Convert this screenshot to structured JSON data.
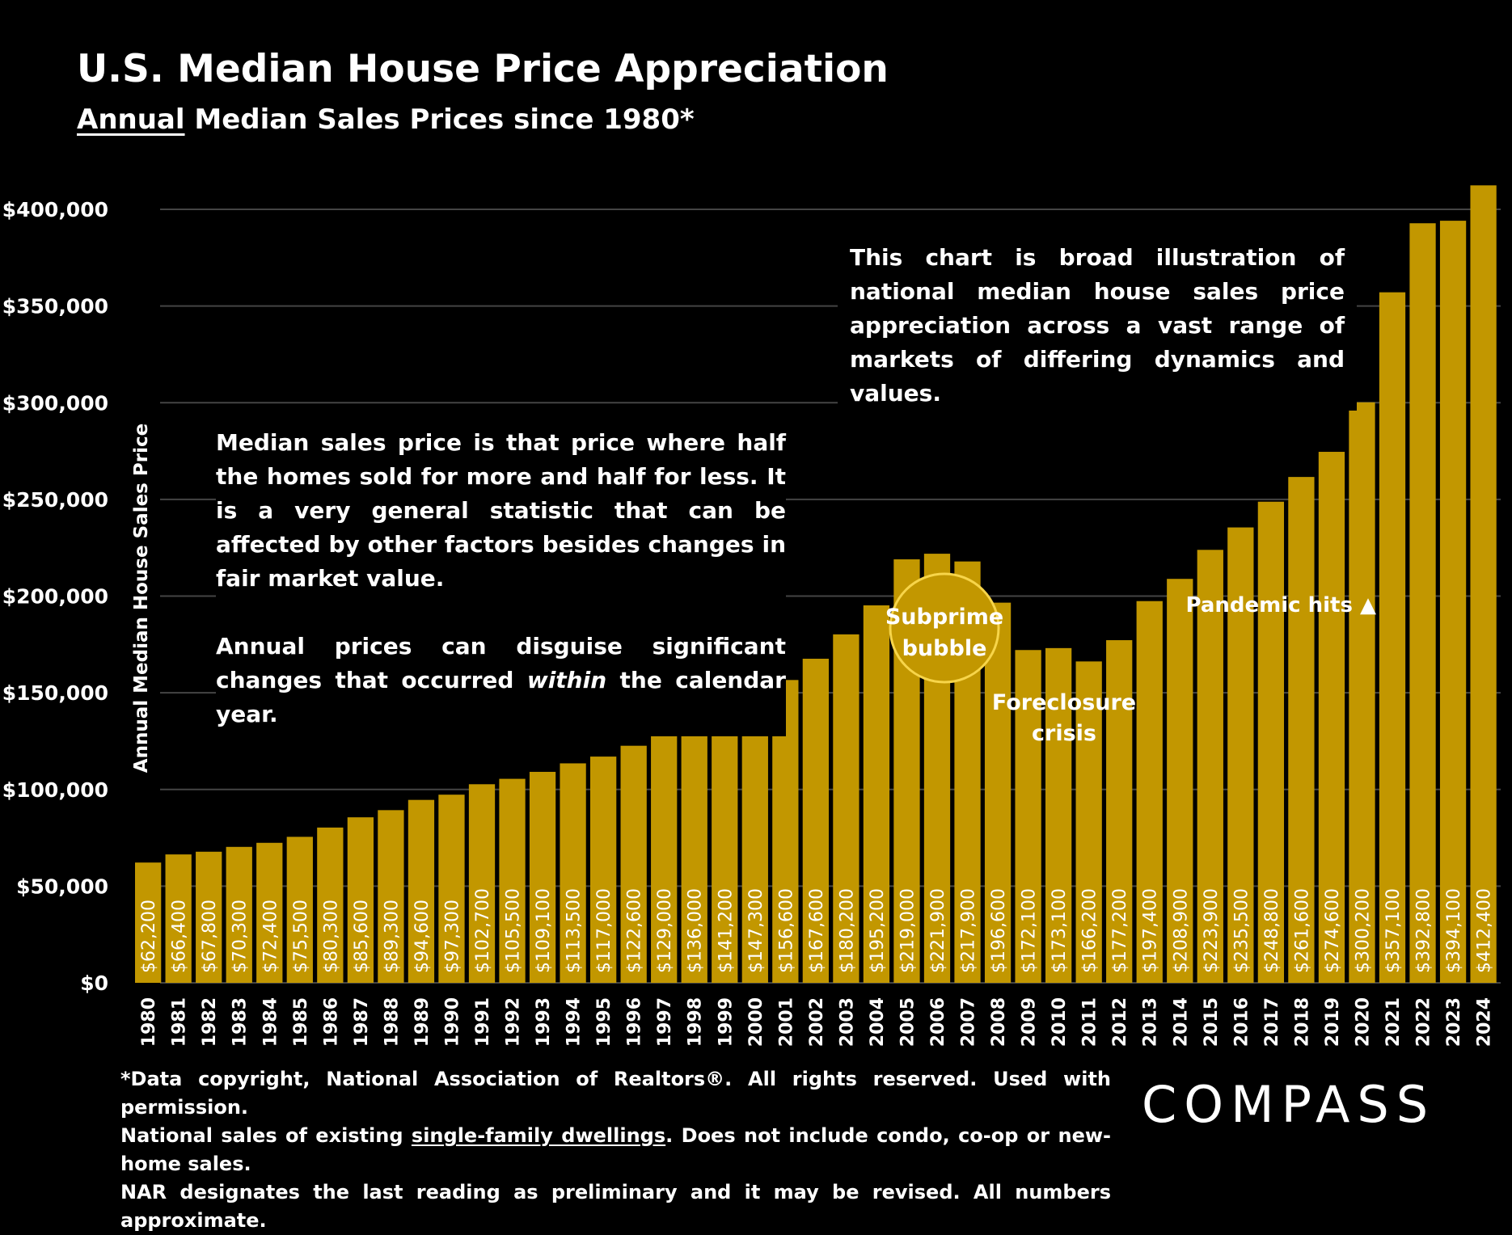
{
  "title": "U.S. Median House Price Appreciation",
  "subtitle_underlined": "Annual",
  "subtitle_rest": " Median Sales Prices since 1980*",
  "notes": {
    "left_p1": "Median sales price is that price where half the homes sold for more and half for less. It is a very general statistic that can be affected by other factors besides changes in fair market value.",
    "left_p2_a": "Annual prices can disguise significant changes that occurred ",
    "left_p2_em": "within",
    "left_p2_b": " the calendar year.",
    "right": "This chart is broad illustration of national median house sales price appreciation across a vast range of markets of differing dynamics and values."
  },
  "footer": {
    "line1": "*Data copyright, National Association of Realtors®. All rights reserved. Used with permission.",
    "line2_a": "National sales of existing ",
    "line2_u": "single-family dwellings",
    "line2_b": ". Does not include condo, co-op or new-home sales.",
    "line3": "NAR designates the last reading as preliminary and it may be revised. All numbers approximate."
  },
  "logo": "COMPASS",
  "colors": {
    "bar": "#c29700",
    "background": "#000000",
    "circle_border": "#f7d54a",
    "grid": "#444444"
  },
  "chart_data": {
    "type": "bar",
    "ylabel": "Annual Median House Sales Price",
    "ylim": [
      0,
      400000
    ],
    "yticks": [
      "$0",
      "$50,000",
      "$100,000",
      "$150,000",
      "$200,000",
      "$250,000",
      "$300,000",
      "$350,000",
      "$400,000"
    ],
    "grid": true,
    "categories": [
      "1980",
      "1981",
      "1982",
      "1983",
      "1984",
      "1985",
      "1986",
      "1987",
      "1988",
      "1989",
      "1990",
      "1991",
      "1992",
      "1993",
      "1994",
      "1995",
      "1996",
      "1997",
      "1998",
      "1999",
      "2000",
      "2001",
      "2002",
      "2003",
      "2004",
      "2005",
      "2006",
      "2007",
      "2008",
      "2009",
      "2010",
      "2011",
      "2012",
      "2013",
      "2014",
      "2015",
      "2016",
      "2017",
      "2018",
      "2019",
      "2020",
      "2021",
      "2022",
      "2023",
      "2024"
    ],
    "values": [
      62200,
      66400,
      67800,
      70300,
      72400,
      75500,
      80300,
      85600,
      89300,
      94600,
      97300,
      102700,
      105500,
      109100,
      113500,
      117000,
      122600,
      129000,
      136000,
      141200,
      147300,
      156600,
      167600,
      180200,
      195200,
      219000,
      221900,
      217900,
      196600,
      172100,
      173100,
      166200,
      177200,
      197400,
      208900,
      223900,
      235500,
      248800,
      261600,
      274600,
      300200,
      357100,
      392800,
      394100,
      412400
    ],
    "labels": [
      "$62,200",
      "$66,400",
      "$67,800",
      "$70,300",
      "$72,400",
      "$75,500",
      "$80,300",
      "$85,600",
      "$89,300",
      "$94,600",
      "$97,300",
      "$102,700",
      "$105,500",
      "$109,100",
      "$113,500",
      "$117,000",
      "$122,600",
      "$129,000",
      "$136,000",
      "$141,200",
      "$147,300",
      "$156,600",
      "$167,600",
      "$180,200",
      "$195,200",
      "$219,000",
      "$221,900",
      "$217,900",
      "$196,600",
      "$172,100",
      "$173,100",
      "$166,200",
      "$177,200",
      "$197,400",
      "$208,900",
      "$223,900",
      "$235,500",
      "$248,800",
      "$261,600",
      "$274,600",
      "$300,200",
      "$357,100",
      "$392,800",
      "$394,100",
      "$412,400"
    ],
    "annotations": {
      "subprime_1": "Subprime",
      "subprime_2": "bubble",
      "foreclosure_1": "Foreclosure",
      "foreclosure_2": "crisis",
      "pandemic": "Pandemic hits ▲"
    }
  }
}
